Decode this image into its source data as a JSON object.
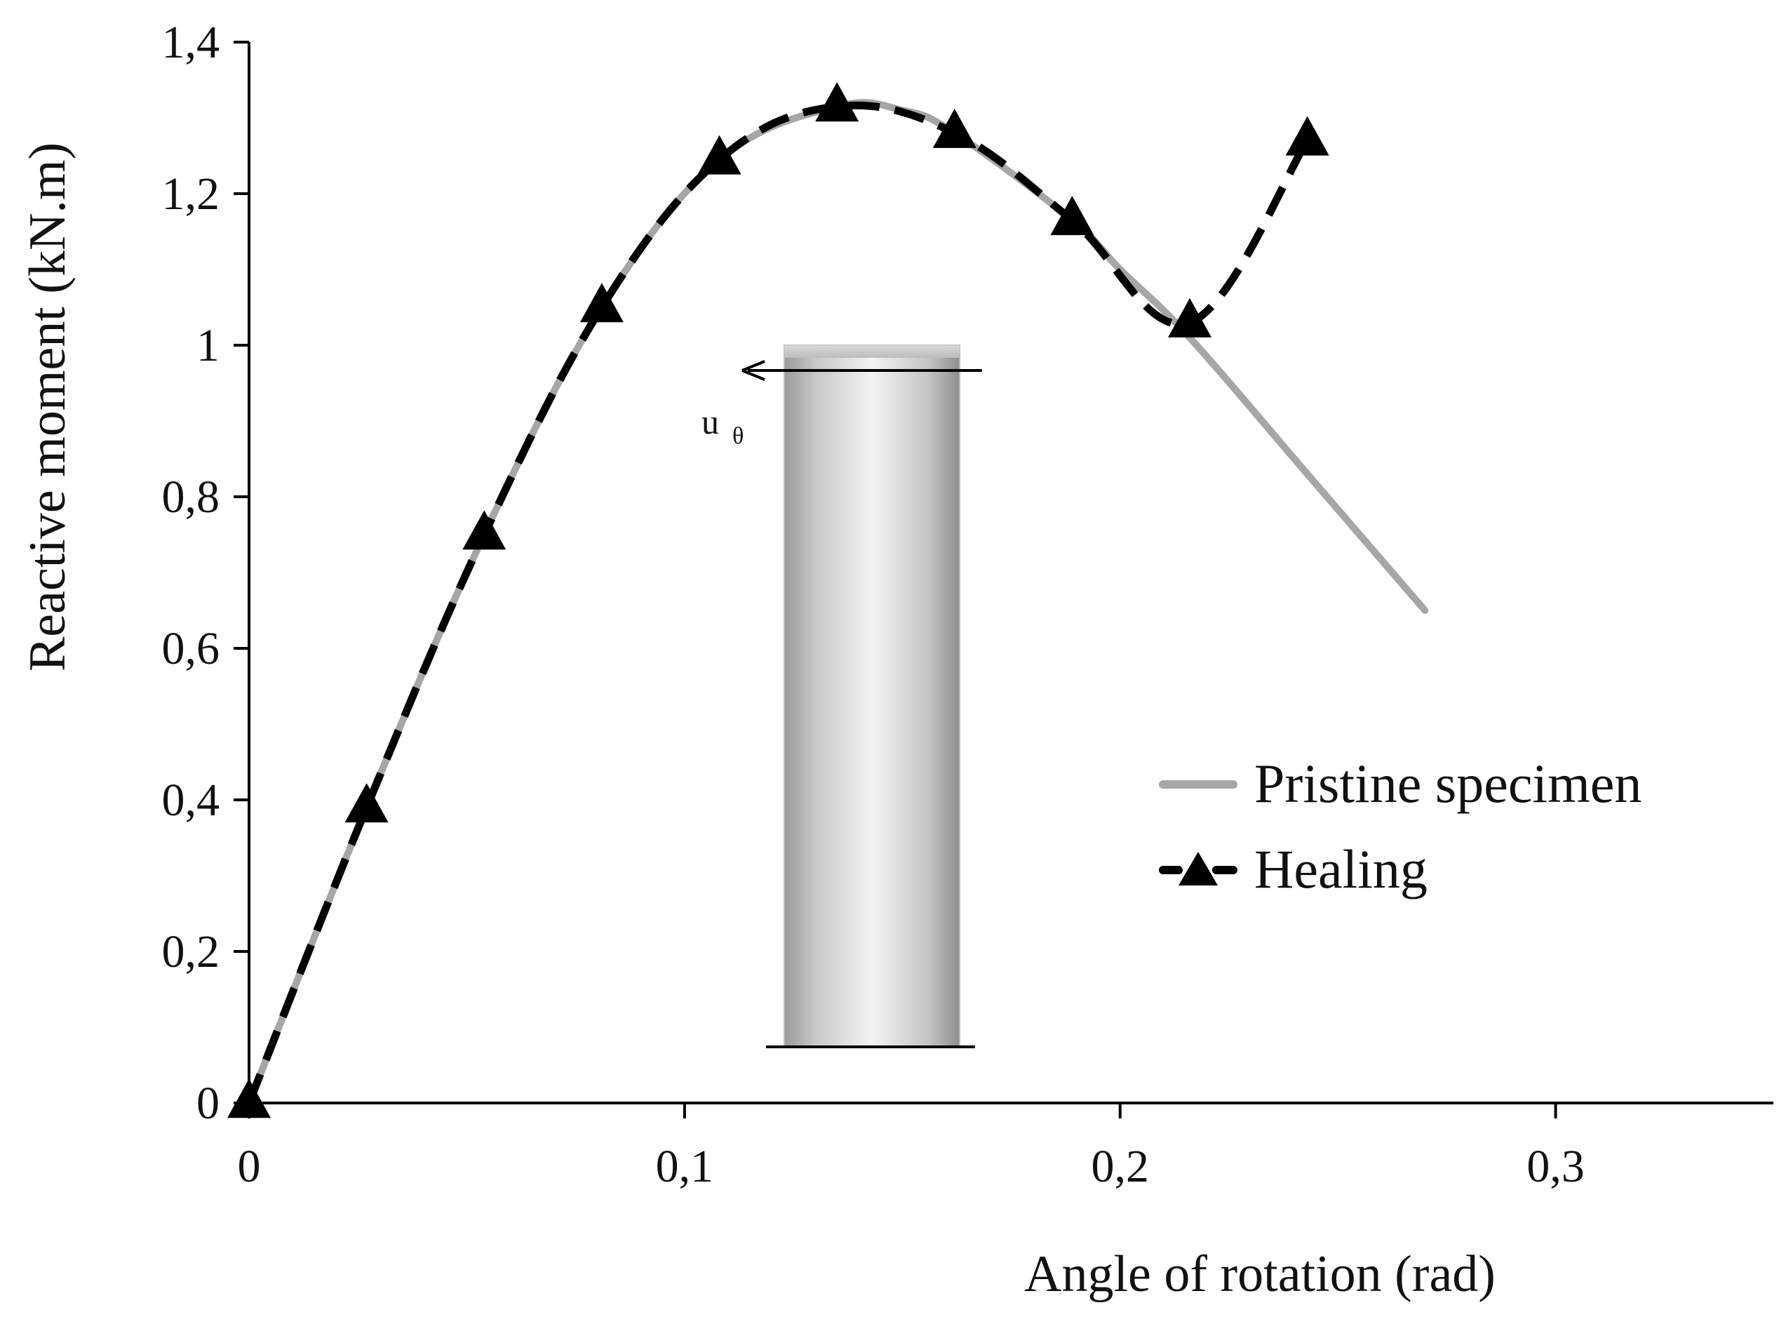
{
  "chart_data": {
    "type": "line",
    "title": "",
    "xlabel": "Angle of rotation (rad)",
    "ylabel": "Reactive moment  (kN.m)",
    "xlim": [
      0,
      0.35
    ],
    "ylim": [
      0,
      1.4
    ],
    "x_ticks": [
      0,
      0.1,
      0.2,
      0.3
    ],
    "x_tick_labels": [
      "0",
      "0,1",
      "0,2",
      "0,3"
    ],
    "y_ticks": [
      0,
      0.2,
      0.4,
      0.6,
      0.8,
      1.0,
      1.2,
      1.4
    ],
    "y_tick_labels": [
      "0",
      "0,2",
      "0,4",
      "0,6",
      "0,8",
      "1",
      "1,2",
      "1,4"
    ],
    "grid": false,
    "legend_position": "right",
    "series": [
      {
        "name": "Pristine specimen",
        "style": "solid",
        "color": "#a6a6a6",
        "marker": "none",
        "x": [
          0,
          0.027,
          0.054,
          0.081,
          0.108,
          0.135,
          0.15,
          0.162,
          0.189,
          0.2,
          0.216,
          0.243,
          0.27
        ],
        "y": [
          0,
          0.39,
          0.75,
          1.05,
          1.245,
          1.315,
          1.31,
          1.28,
          1.165,
          1.1,
          1.01,
          0.83,
          0.65
        ]
      },
      {
        "name": "Healing",
        "style": "dashed",
        "color": "#000000",
        "marker": "triangle",
        "x": [
          0,
          0.027,
          0.054,
          0.081,
          0.108,
          0.135,
          0.162,
          0.189,
          0.216,
          0.243
        ],
        "y": [
          0,
          0.39,
          0.75,
          1.05,
          1.245,
          1.315,
          1.28,
          1.165,
          1.03,
          1.27
        ]
      }
    ],
    "inset": {
      "label": "u",
      "label_subscript": "θ",
      "description_icon": "cylinder-specimen-icon"
    }
  }
}
